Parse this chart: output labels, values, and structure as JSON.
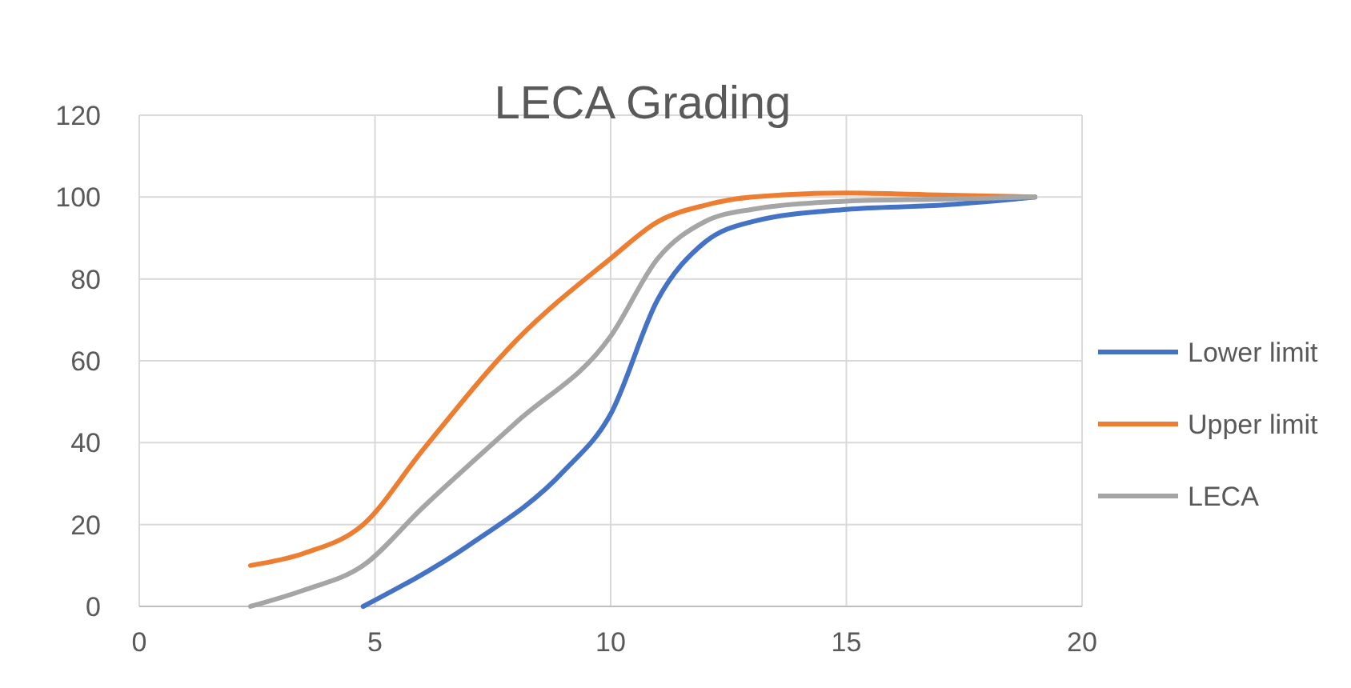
{
  "chart_data": {
    "type": "line",
    "title": "LECA Grading",
    "xlim": [
      0,
      20
    ],
    "xticks": [
      0,
      5,
      10,
      15,
      20
    ],
    "ylim": [
      0,
      120
    ],
    "yticks": [
      0,
      20,
      40,
      60,
      80,
      100,
      120
    ],
    "grid": true,
    "legend": "right",
    "line_style": "solid",
    "series": [
      {
        "name": "Lower limit",
        "color": "#4472c4",
        "x": [
          4.75,
          7,
          9,
          10,
          11,
          12,
          13,
          15,
          17,
          19
        ],
        "values": [
          0,
          15,
          33,
          47,
          75,
          89,
          94,
          97,
          98,
          100
        ]
      },
      {
        "name": "Upper limit",
        "color": "#ed7d31",
        "x": [
          2.36,
          3.5,
          4.75,
          6,
          8,
          10,
          11,
          12,
          13,
          15,
          17,
          19
        ],
        "values": [
          10,
          13,
          20,
          38,
          65,
          85,
          94,
          98,
          100,
          101,
          100.5,
          100
        ]
      },
      {
        "name": "LECA",
        "color": "#a5a5a5",
        "x": [
          2.36,
          3.5,
          4.75,
          6,
          8,
          10,
          11,
          12,
          13,
          15,
          17,
          19
        ],
        "values": [
          0,
          4,
          10,
          24,
          45,
          66,
          85,
          94,
          97,
          99,
          99.5,
          100
        ]
      }
    ]
  }
}
